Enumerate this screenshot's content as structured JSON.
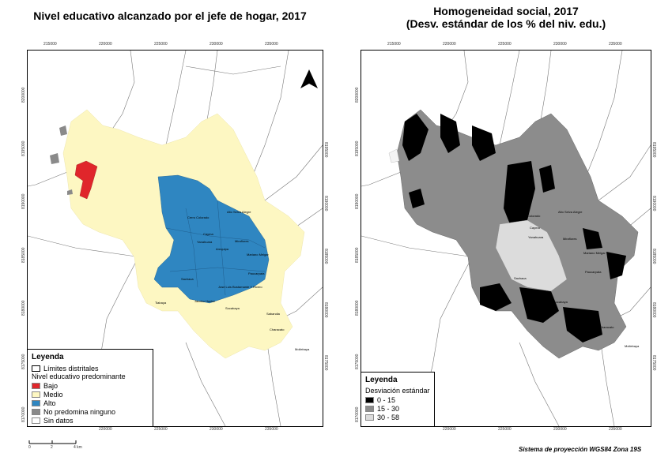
{
  "maps": [
    {
      "title": "Nivel educativo alcanzado por el jefe de hogar, 2017",
      "legend": {
        "title": "Leyenda",
        "boundary_label": "Límites distritales",
        "subtitle": "Nivel educativo predominante",
        "items": [
          {
            "label": "Bajo",
            "color": "#e0262b"
          },
          {
            "label": "Medio",
            "color": "#fdf7c2"
          },
          {
            "label": "Alto",
            "color": "#2f86c1"
          },
          {
            "label": "No predomina ninguno",
            "color": "#8a8a8a"
          },
          {
            "label": "Sin datos",
            "color": "#ffffff"
          }
        ]
      },
      "x_ticks": [
        "215000",
        "220000",
        "225000",
        "230000",
        "235000"
      ],
      "y_ticks": [
        "8200000",
        "8195000",
        "8190000",
        "8185000",
        "8180000",
        "8175000",
        "8170000"
      ],
      "y_ticks_right": [
        "8195000",
        "8190000",
        "8185000",
        "8180000",
        "8175000"
      ],
      "places": [
        "Cerro Colorado",
        "Cayma",
        "Yanahuara",
        "Alto Selva Alegre",
        "Miraflores",
        "Mariano Melgar",
        "Arequipa",
        "Paucarpata",
        "Sachaca",
        "Jose Luis Bustamante Y Rivero",
        "Jacobo Hunter",
        "Tiabaya",
        "Socabaya",
        "Sabandia",
        "Characato",
        "Mollebaya"
      ]
    },
    {
      "title": "Homogeneidad social, 2017",
      "subtitle": "(Desv. estándar de los % del niv. edu.)",
      "legend": {
        "title": "Leyenda",
        "subtitle": "Desviación estándar",
        "items": [
          {
            "label": "0 - 15",
            "color": "#000000"
          },
          {
            "label": "15 - 30",
            "color": "#8c8c8c"
          },
          {
            "label": "30 - 58",
            "color": "#dcdcdc"
          }
        ]
      },
      "x_ticks": [
        "215000",
        "220000",
        "225000",
        "230000",
        "235000"
      ],
      "y_ticks": [
        "8200000",
        "8195000",
        "8190000",
        "8185000",
        "8180000",
        "8175000",
        "8170000"
      ],
      "y_ticks_right": [
        "8195000",
        "8190000",
        "8185000",
        "8180000",
        "8175000"
      ],
      "places": [
        "Cerro Colorado",
        "Alto Selva Alegre",
        "Cayma",
        "Yanahuara",
        "Miraflores",
        "Mariano Melgar",
        "Sachaca",
        "Paucarpata",
        "Jacobo Hunter",
        "Tiabaya",
        "Socabaya",
        "Characato",
        "Mollebaya"
      ]
    }
  ],
  "scale": {
    "labels": [
      "0",
      "2",
      "4 km"
    ]
  },
  "projection_note": "Sistema de proyección WGS84 Zona 19S",
  "north_label": "N"
}
